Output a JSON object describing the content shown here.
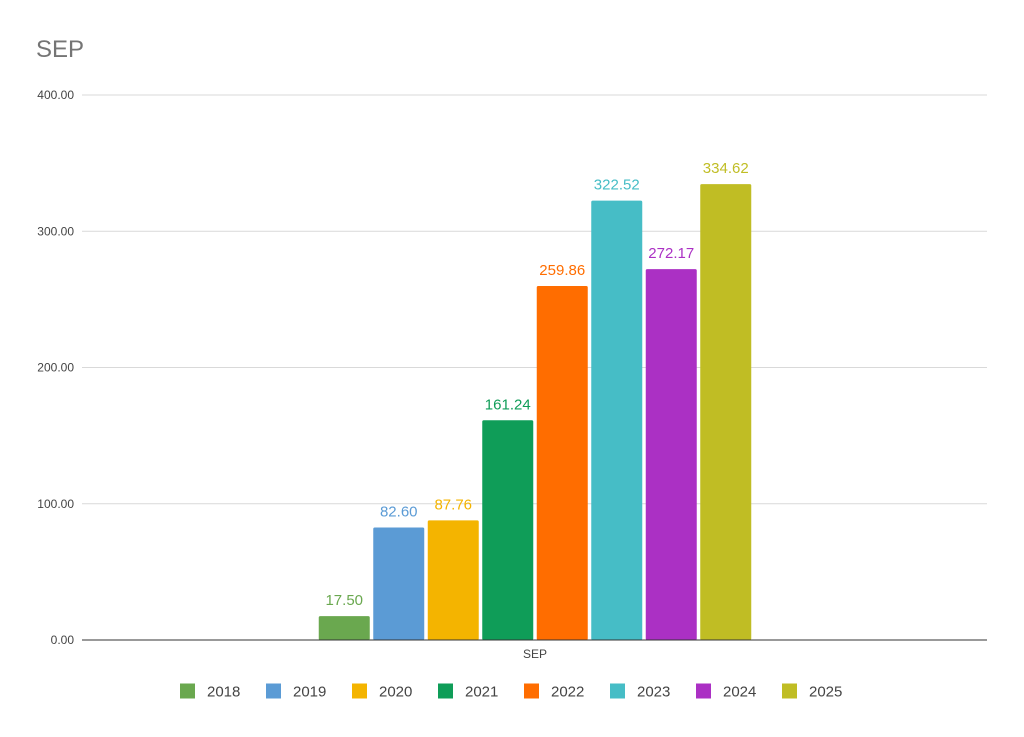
{
  "chart_data": {
    "type": "bar",
    "title": "SEP",
    "xlabel": "",
    "ylabel": "",
    "categories": [
      "SEP"
    ],
    "ylim": [
      0,
      400
    ],
    "yticks": [
      "0.00",
      "100.00",
      "200.00",
      "300.00",
      "400.00"
    ],
    "grid": true,
    "legend_position": "bottom",
    "series": [
      {
        "name": "2018",
        "values": [
          17.5
        ],
        "label": "17.50",
        "color": "#6aa84f"
      },
      {
        "name": "2019",
        "values": [
          82.6
        ],
        "label": "82.60",
        "color": "#5b9bd5"
      },
      {
        "name": "2020",
        "values": [
          87.76
        ],
        "label": "87.76",
        "color": "#f4b400"
      },
      {
        "name": "2021",
        "values": [
          161.24
        ],
        "label": "161.24",
        "color": "#0f9d58"
      },
      {
        "name": "2022",
        "values": [
          259.86
        ],
        "label": "259.86",
        "color": "#ff6d00"
      },
      {
        "name": "2023",
        "values": [
          322.52
        ],
        "label": "322.52",
        "color": "#46bdc6"
      },
      {
        "name": "2024",
        "values": [
          272.17
        ],
        "label": "272.17",
        "color": "#ab30c4"
      },
      {
        "name": "2025",
        "values": [
          334.62
        ],
        "label": "334.62",
        "color": "#c0bd24"
      }
    ]
  }
}
